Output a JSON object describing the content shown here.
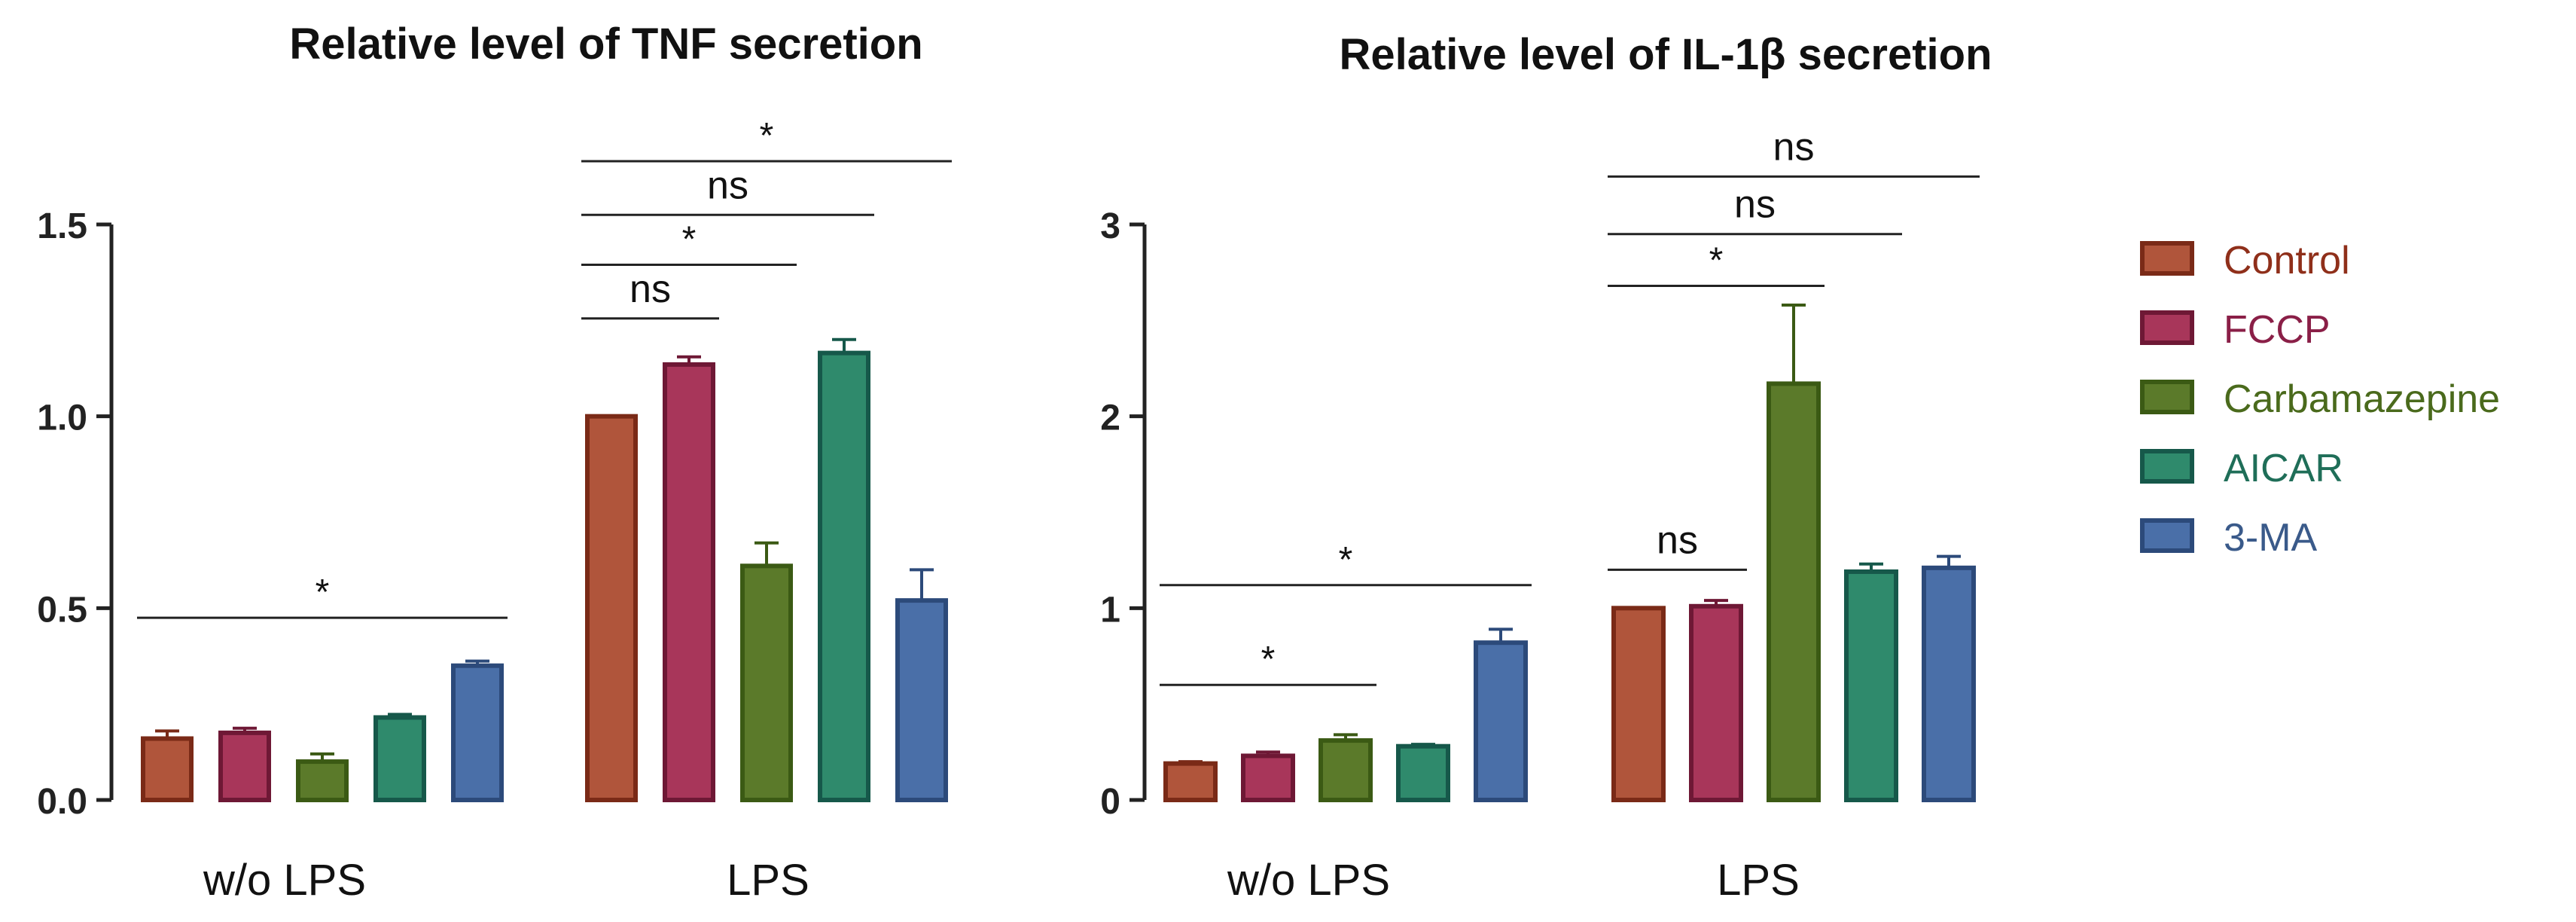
{
  "chart_data": [
    {
      "type": "bar",
      "title": "Relative level of TNF secretion",
      "xlabel": "",
      "ylabel": "",
      "ylim": [
        0,
        1.5
      ],
      "yticks": [
        0.0,
        0.5,
        1.0,
        1.5
      ],
      "ytick_labels": [
        "0.0",
        "0.5",
        "1.0",
        "1.5"
      ],
      "categories": [
        "w/o LPS",
        "LPS"
      ],
      "series": [
        {
          "name": "Control",
          "values": [
            0.16,
            1.0
          ],
          "errors": [
            0.02,
            0.0
          ]
        },
        {
          "name": "FCCP",
          "values": [
            0.175,
            1.135
          ],
          "errors": [
            0.012,
            0.02
          ]
        },
        {
          "name": "Carbamazepine",
          "values": [
            0.1,
            0.61
          ],
          "errors": [
            0.02,
            0.06
          ]
        },
        {
          "name": "AICAR",
          "values": [
            0.215,
            1.165
          ],
          "errors": [
            0.008,
            0.035
          ]
        },
        {
          "name": "3-MA",
          "values": [
            0.35,
            0.52
          ],
          "errors": [
            0.012,
            0.08
          ]
        }
      ],
      "annotations": [
        {
          "label": "*",
          "group": 0,
          "from": 0,
          "to": 4,
          "y": 0.475
        },
        {
          "label": "ns",
          "group": 1,
          "from": 0,
          "to": 1,
          "y": 1.255
        },
        {
          "label": "*",
          "group": 1,
          "from": 0,
          "to": 2,
          "y": 1.395
        },
        {
          "label": "ns",
          "group": 1,
          "from": 0,
          "to": 3,
          "y": 1.525
        },
        {
          "label": "*",
          "group": 1,
          "from": 0,
          "to": 4,
          "y": 1.665
        }
      ]
    },
    {
      "type": "bar",
      "title": "Relative level of IL-1β secretion",
      "xlabel": "",
      "ylabel": "",
      "ylim": [
        0,
        3
      ],
      "yticks": [
        0,
        1,
        2,
        3
      ],
      "ytick_labels": [
        "0",
        "1",
        "2",
        "3"
      ],
      "categories": [
        "w/o LPS",
        "LPS"
      ],
      "series": [
        {
          "name": "Control",
          "values": [
            0.19,
            1.0
          ],
          "errors": [
            0.01,
            0.0
          ]
        },
        {
          "name": "FCCP",
          "values": [
            0.23,
            1.01
          ],
          "errors": [
            0.02,
            0.03
          ]
        },
        {
          "name": "Carbamazepine",
          "values": [
            0.31,
            2.17
          ],
          "errors": [
            0.03,
            0.41
          ]
        },
        {
          "name": "AICAR",
          "values": [
            0.28,
            1.19
          ],
          "errors": [
            0.01,
            0.04
          ]
        },
        {
          "name": "3-MA",
          "values": [
            0.82,
            1.21
          ],
          "errors": [
            0.07,
            0.06
          ]
        }
      ],
      "annotations": [
        {
          "label": "*",
          "group": 0,
          "from": 0,
          "to": 2,
          "y": 0.6
        },
        {
          "label": "*",
          "group": 0,
          "from": 0,
          "to": 4,
          "y": 1.12
        },
        {
          "label": "ns",
          "group": 1,
          "from": 0,
          "to": 1,
          "y": 1.2
        },
        {
          "label": "*",
          "group": 1,
          "from": 0,
          "to": 2,
          "y": 2.68
        },
        {
          "label": "ns",
          "group": 1,
          "from": 0,
          "to": 3,
          "y": 2.95
        },
        {
          "label": "ns",
          "group": 1,
          "from": 0,
          "to": 4,
          "y": 3.25
        }
      ]
    }
  ],
  "legend": {
    "position": "right",
    "items": [
      {
        "name": "Control",
        "fill": "#b0553b",
        "stroke": "#7a2a17",
        "text": "#8f2f1a"
      },
      {
        "name": "FCCP",
        "fill": "#a8365a",
        "stroke": "#6e1835",
        "text": "#8a1f47"
      },
      {
        "name": "Carbamazepine",
        "fill": "#5b7a2a",
        "stroke": "#3b5a14",
        "text": "#4a6a1c"
      },
      {
        "name": "AICAR",
        "fill": "#2f8a6c",
        "stroke": "#16584a",
        "text": "#1f6e58"
      },
      {
        "name": "3-MA",
        "fill": "#4a6fa8",
        "stroke": "#2c4a7a",
        "text": "#3a5a8a"
      }
    ]
  }
}
